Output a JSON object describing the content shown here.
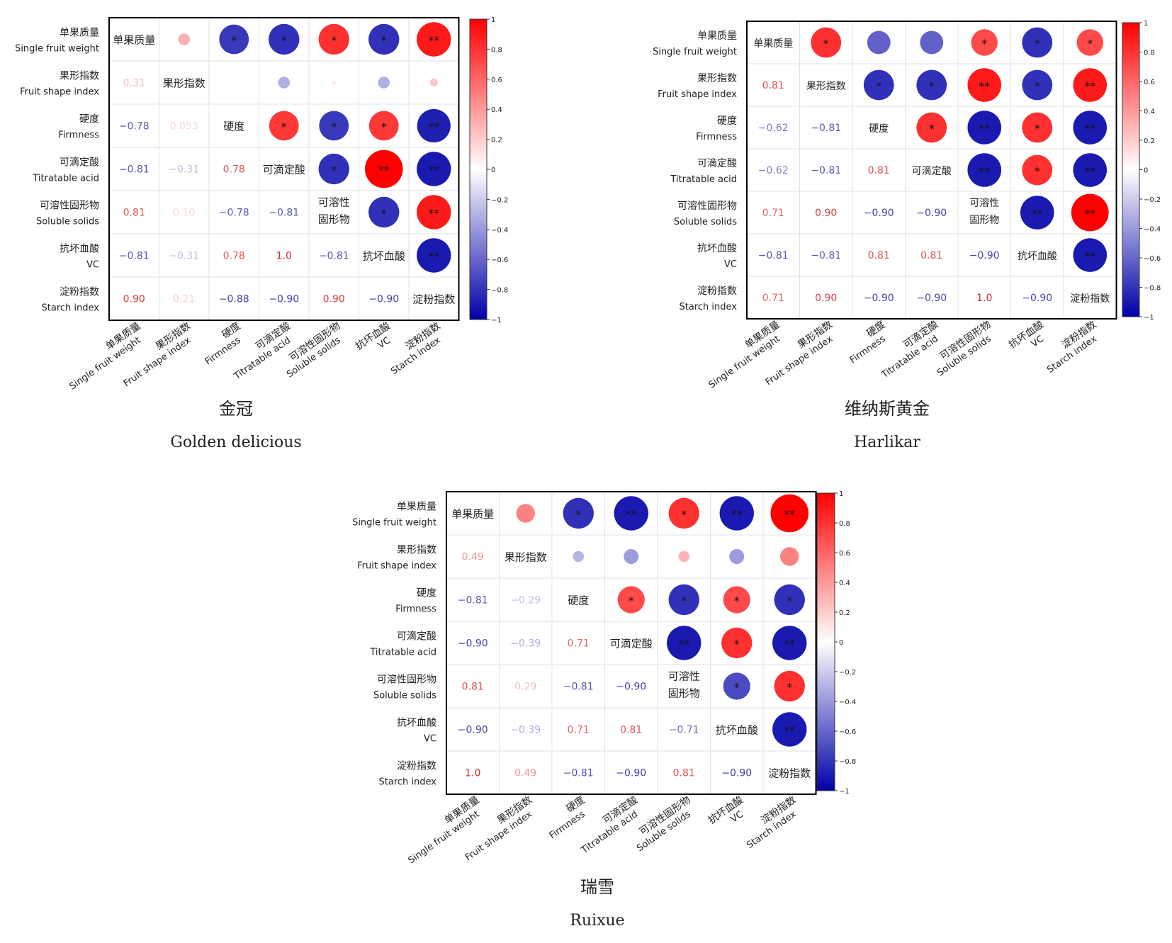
{
  "figure": {
    "variables": [
      {
        "cn": "单果质量",
        "en": "Single fruit weight"
      },
      {
        "cn": "果形指数",
        "en": "Fruit shape index"
      },
      {
        "cn": "硬度",
        "en": "Firmness"
      },
      {
        "cn": "可滴定酸",
        "en": "Titratable acid"
      },
      {
        "cn": "可溶性固形物",
        "en": "Soluble solids",
        "diag": [
          "可溶性",
          "固形物"
        ]
      },
      {
        "cn": "抗坏血酸",
        "en": "VC"
      },
      {
        "cn": "淀粉指数",
        "en": "Starch index"
      }
    ],
    "colorbar_ticks": [
      "1",
      "0.8",
      "0.6",
      "0.4",
      "0.2",
      "0",
      "−0.2",
      "−0.4",
      "−0.6",
      "−0.8",
      "−1"
    ],
    "colors": {
      "positive": "#ff0000",
      "negative": "#0000a8",
      "neutral": "#ffffff"
    }
  },
  "chart_data": [
    {
      "type": "heatmap",
      "title_cn": "金冠",
      "title_en": "Golden delicious",
      "matrix": [
        [
          1,
          0.31,
          -0.78,
          -0.81,
          0.81,
          -0.81,
          0.9
        ],
        [
          0.31,
          1,
          0.053,
          -0.31,
          0.1,
          -0.31,
          0.21
        ],
        [
          -0.78,
          0.053,
          1,
          0.78,
          -0.78,
          0.78,
          -0.88
        ],
        [
          -0.81,
          -0.31,
          0.78,
          1,
          -0.81,
          1.0,
          -0.9
        ],
        [
          0.81,
          0.1,
          -0.78,
          -0.81,
          1,
          -0.81,
          0.9
        ],
        [
          -0.81,
          -0.31,
          0.78,
          1.0,
          -0.81,
          1,
          -0.9
        ],
        [
          0.9,
          0.21,
          -0.88,
          -0.9,
          0.9,
          -0.9,
          1
        ]
      ],
      "lower_labels": [
        [
          null,
          null,
          null,
          null,
          null,
          null,
          null
        ],
        [
          "0.31",
          null,
          null,
          null,
          null,
          null,
          null
        ],
        [
          "−0.78",
          "0.053",
          null,
          null,
          null,
          null,
          null
        ],
        [
          "−0.81",
          "−0.31",
          "0.78",
          null,
          null,
          null,
          null
        ],
        [
          "0.81",
          "0.10",
          "−0.78",
          "−0.81",
          null,
          null,
          null
        ],
        [
          "−0.81",
          "−0.31",
          "0.78",
          "1.0",
          "−0.81",
          null,
          null
        ],
        [
          "0.90",
          "0.21",
          "−0.88",
          "−0.90",
          "0.90",
          "−0.90",
          null
        ]
      ],
      "significance": [
        [
          "",
          "",
          "*",
          "*",
          "*",
          "*",
          "**"
        ],
        [
          "",
          "",
          "",
          "",
          "",
          "",
          ""
        ],
        [
          "",
          "",
          "",
          "*",
          "*",
          "*",
          "**"
        ],
        [
          "",
          "",
          "",
          "",
          "*",
          "**",
          "**"
        ],
        [
          "",
          "",
          "",
          "",
          "",
          "*",
          "**"
        ],
        [
          "",
          "",
          "",
          "",
          "",
          "",
          "**"
        ],
        [
          "",
          "",
          "",
          "",
          "",
          "",
          ""
        ]
      ],
      "scale": [
        -1,
        1
      ]
    },
    {
      "type": "heatmap",
      "title_cn": "维纳斯黄金",
      "title_en": "Harlikar",
      "matrix": [
        [
          1,
          0.81,
          -0.62,
          -0.62,
          0.71,
          -0.81,
          0.71
        ],
        [
          0.81,
          1,
          -0.81,
          -0.81,
          0.9,
          -0.81,
          0.9
        ],
        [
          -0.62,
          -0.81,
          1,
          0.81,
          -0.9,
          0.81,
          -0.9
        ],
        [
          -0.62,
          -0.81,
          0.81,
          1,
          -0.9,
          0.81,
          -0.9
        ],
        [
          0.71,
          0.9,
          -0.9,
          -0.9,
          1,
          -0.9,
          1.0
        ],
        [
          -0.81,
          -0.81,
          0.81,
          0.81,
          -0.9,
          1,
          -0.9
        ],
        [
          0.71,
          0.9,
          -0.9,
          -0.9,
          1.0,
          -0.9,
          1
        ]
      ],
      "lower_labels": [
        [
          null,
          null,
          null,
          null,
          null,
          null,
          null
        ],
        [
          "0.81",
          null,
          null,
          null,
          null,
          null,
          null
        ],
        [
          "−0.62",
          "−0.81",
          null,
          null,
          null,
          null,
          null
        ],
        [
          "−0.62",
          "−0.81",
          "0.81",
          null,
          null,
          null,
          null
        ],
        [
          "0.71",
          "0.90",
          "−0.90",
          "−0.90",
          null,
          null,
          null
        ],
        [
          "−0.81",
          "−0.81",
          "0.81",
          "0.81",
          "−0.90",
          null,
          null
        ],
        [
          "0.71",
          "0.90",
          "−0.90",
          "−0.90",
          "1.0",
          "−0.90",
          null
        ]
      ],
      "significance": [
        [
          "",
          "*",
          "",
          "",
          "*",
          "*",
          "*"
        ],
        [
          "",
          "",
          "*",
          "*",
          "**",
          "*",
          "**"
        ],
        [
          "",
          "",
          "",
          "*",
          "**",
          "*",
          "**"
        ],
        [
          "",
          "",
          "",
          "",
          "**",
          "*",
          "**"
        ],
        [
          "",
          "",
          "",
          "",
          "",
          "**",
          "**"
        ],
        [
          "",
          "",
          "",
          "",
          "",
          "",
          "**"
        ],
        [
          "",
          "",
          "",
          "",
          "",
          "",
          ""
        ]
      ],
      "scale": [
        -1,
        1
      ]
    },
    {
      "type": "heatmap",
      "title_cn": "瑞雪",
      "title_en": "Ruixue",
      "matrix": [
        [
          1,
          0.49,
          -0.81,
          -0.9,
          0.81,
          -0.9,
          1.0
        ],
        [
          0.49,
          1,
          -0.29,
          -0.39,
          0.29,
          -0.39,
          0.49
        ],
        [
          -0.81,
          -0.29,
          1,
          0.71,
          -0.81,
          0.71,
          -0.81
        ],
        [
          -0.9,
          -0.39,
          0.71,
          1,
          -0.9,
          0.81,
          -0.9
        ],
        [
          0.81,
          0.29,
          -0.81,
          -0.9,
          1,
          -0.71,
          0.81
        ],
        [
          -0.9,
          -0.39,
          0.71,
          0.81,
          -0.71,
          1,
          -0.9
        ],
        [
          1.0,
          0.49,
          -0.81,
          -0.9,
          0.81,
          -0.9,
          1
        ]
      ],
      "lower_labels": [
        [
          null,
          null,
          null,
          null,
          null,
          null,
          null
        ],
        [
          "0.49",
          null,
          null,
          null,
          null,
          null,
          null
        ],
        [
          "−0.81",
          "−0.29",
          null,
          null,
          null,
          null,
          null
        ],
        [
          "−0.90",
          "−0.39",
          "0.71",
          null,
          null,
          null,
          null
        ],
        [
          "0.81",
          "0.29",
          "−0.81",
          "−0.90",
          null,
          null,
          null
        ],
        [
          "−0.90",
          "−0.39",
          "0.71",
          "0.81",
          "−0.71",
          null,
          null
        ],
        [
          "1.0",
          "0.49",
          "−0.81",
          "−0.90",
          "0.81",
          "−0.90",
          null
        ]
      ],
      "significance": [
        [
          "",
          "",
          "*",
          "**",
          "*",
          "**",
          "**"
        ],
        [
          "",
          "",
          "",
          "",
          "",
          "",
          ""
        ],
        [
          "",
          "",
          "",
          "*",
          "*",
          "*",
          "*"
        ],
        [
          "",
          "",
          "",
          "",
          "**",
          "*",
          "**"
        ],
        [
          "",
          "",
          "",
          "",
          "",
          "*",
          "*"
        ],
        [
          "",
          "",
          "",
          "",
          "",
          "",
          "**"
        ],
        [
          "",
          "",
          "",
          "",
          "",
          "",
          ""
        ]
      ],
      "scale": [
        -1,
        1
      ]
    }
  ]
}
